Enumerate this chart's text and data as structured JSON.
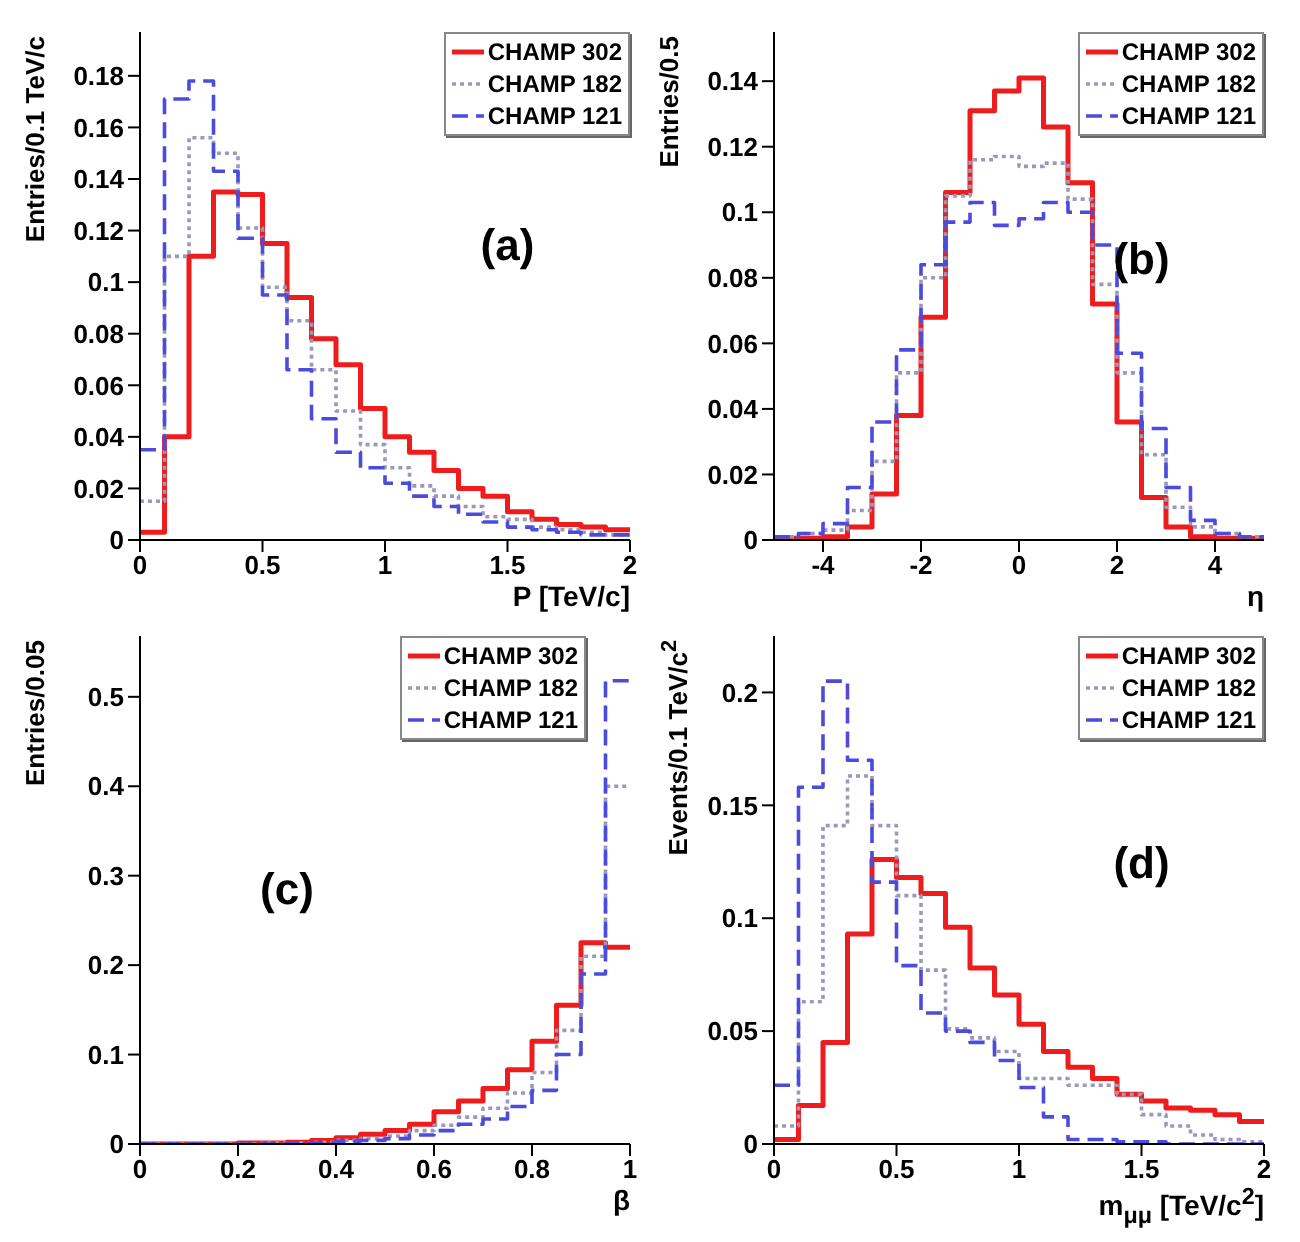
{
  "chart_data": [
    {
      "type": "histogram",
      "xlabel": "P [TeV/c]",
      "ylabel": "Entries/0.1 TeV/c",
      "annotations": [
        "(a)"
      ],
      "legend": "top right",
      "grid": false,
      "bins": [
        0,
        0.1,
        0.2,
        0.3,
        0.4,
        0.5,
        0.6,
        0.7,
        0.8,
        0.9,
        1,
        1.1,
        1.2,
        1.3,
        1.4,
        1.5,
        1.6,
        1.7,
        1.8,
        1.9,
        2
      ],
      "xlim": [
        0,
        2
      ],
      "xticks": [
        0,
        0.5,
        1,
        1.5,
        2
      ],
      "ylim": [
        0,
        0.197
      ],
      "yticks": [
        0,
        0.02,
        0.04,
        0.06,
        0.08,
        0.1,
        0.12,
        0.14,
        0.16,
        0.18
      ],
      "series": [
        {
          "name": "CHAMP 302",
          "color": "#ee1c1c",
          "line_style": "solid",
          "values": [
            0.003,
            0.04,
            0.11,
            0.135,
            0.134,
            0.115,
            0.094,
            0.078,
            0.068,
            0.051,
            0.04,
            0.034,
            0.027,
            0.02,
            0.017,
            0.011,
            0.008,
            0.006,
            0.005,
            0.004
          ]
        },
        {
          "name": "CHAMP 182",
          "color": "#9999bb",
          "line_style": "dotted",
          "values": [
            0.015,
            0.11,
            0.156,
            0.15,
            0.121,
            0.098,
            0.085,
            0.066,
            0.05,
            0.037,
            0.028,
            0.021,
            0.017,
            0.013,
            0.009,
            0.008,
            0.005,
            0.004,
            0.003,
            0.002
          ]
        },
        {
          "name": "CHAMP 121",
          "color": "#4b4bdd",
          "line_style": "dashed",
          "values": [
            0.035,
            0.171,
            0.178,
            0.143,
            0.117,
            0.095,
            0.066,
            0.047,
            0.034,
            0.028,
            0.022,
            0.017,
            0.013,
            0.01,
            0.007,
            0.005,
            0.004,
            0.003,
            0.002,
            0.002
          ]
        }
      ]
    },
    {
      "type": "histogram",
      "xlabel": "η",
      "ylabel": "Entries/0.5",
      "annotations": [
        "(b)"
      ],
      "legend": "top right",
      "grid": false,
      "bins": [
        -5,
        -4.5,
        -4,
        -3.5,
        -3,
        -2.5,
        -2,
        -1.5,
        -1,
        -0.5,
        0,
        0.5,
        1,
        1.5,
        2,
        2.5,
        3,
        3.5,
        4,
        4.5,
        5
      ],
      "xlim": [
        -5,
        5
      ],
      "xticks": [
        -4,
        -2,
        0,
        2,
        4
      ],
      "ylim": [
        0,
        0.155
      ],
      "yticks": [
        0,
        0.02,
        0.04,
        0.06,
        0.08,
        0.1,
        0.12,
        0.14
      ],
      "series": [
        {
          "name": "CHAMP 302",
          "color": "#ee1c1c",
          "line_style": "solid",
          "values": [
            0.0005,
            0.0005,
            0.001,
            0.004,
            0.014,
            0.038,
            0.068,
            0.106,
            0.131,
            0.137,
            0.141,
            0.126,
            0.109,
            0.072,
            0.036,
            0.013,
            0.004,
            0.001,
            0.0005,
            0.0005
          ]
        },
        {
          "name": "CHAMP 182",
          "color": "#9999bb",
          "line_style": "dotted",
          "values": [
            0.001,
            0.002,
            0.003,
            0.009,
            0.024,
            0.051,
            0.08,
            0.105,
            0.116,
            0.117,
            0.114,
            0.115,
            0.104,
            0.078,
            0.051,
            0.026,
            0.01,
            0.004,
            0.002,
            0.001
          ]
        },
        {
          "name": "CHAMP 121",
          "color": "#4b4bdd",
          "line_style": "dashed",
          "values": [
            0.001,
            0.002,
            0.005,
            0.016,
            0.036,
            0.058,
            0.084,
            0.097,
            0.103,
            0.096,
            0.098,
            0.103,
            0.1,
            0.09,
            0.057,
            0.034,
            0.016,
            0.006,
            0.002,
            0.001
          ]
        }
      ]
    },
    {
      "type": "histogram",
      "xlabel": "β",
      "ylabel": "Entries/0.05",
      "annotations": [
        "(c)"
      ],
      "legend": "top right",
      "grid": false,
      "bins": [
        0,
        0.05,
        0.1,
        0.15,
        0.2,
        0.25,
        0.3,
        0.35,
        0.4,
        0.45,
        0.5,
        0.55,
        0.6,
        0.65,
        0.7,
        0.75,
        0.8,
        0.85,
        0.9,
        0.95,
        1
      ],
      "xlim": [
        0,
        1
      ],
      "xticks": [
        0,
        0.2,
        0.4,
        0.6,
        0.8,
        1
      ],
      "ylim": [
        0,
        0.568
      ],
      "yticks": [
        0,
        0.1,
        0.2,
        0.3,
        0.4,
        0.5
      ],
      "series": [
        {
          "name": "CHAMP 302",
          "color": "#ee1c1c",
          "line_style": "solid",
          "values": [
            0,
            0,
            0,
            0,
            0.001,
            0.001,
            0.002,
            0.004,
            0.007,
            0.011,
            0.015,
            0.022,
            0.036,
            0.048,
            0.062,
            0.083,
            0.115,
            0.155,
            0.225,
            0.22
          ]
        },
        {
          "name": "CHAMP 182",
          "color": "#9999bb",
          "line_style": "dotted",
          "values": [
            0,
            0,
            0,
            0,
            0,
            0.001,
            0.001,
            0.002,
            0.004,
            0.006,
            0.009,
            0.015,
            0.021,
            0.03,
            0.04,
            0.057,
            0.08,
            0.127,
            0.21,
            0.4
          ]
        },
        {
          "name": "CHAMP 121",
          "color": "#4b4bdd",
          "line_style": "dashed",
          "values": [
            0,
            0,
            0,
            0,
            0,
            0,
            0.001,
            0.001,
            0.003,
            0.004,
            0.006,
            0.01,
            0.015,
            0.022,
            0.028,
            0.042,
            0.06,
            0.1,
            0.19,
            0.518
          ]
        }
      ]
    },
    {
      "type": "histogram",
      "xlabel": "m$_{μμ}$ [TeV/c$^{2}$]",
      "ylabel": "Events/0.1 TeV/c$^{2}$",
      "annotations": [
        "(d)"
      ],
      "legend": "top right",
      "grid": false,
      "bins": [
        0,
        0.1,
        0.2,
        0.3,
        0.4,
        0.5,
        0.6,
        0.7,
        0.8,
        0.9,
        1,
        1.1,
        1.2,
        1.3,
        1.4,
        1.5,
        1.6,
        1.7,
        1.8,
        1.9,
        2
      ],
      "xlim": [
        0,
        2
      ],
      "xticks": [
        0,
        0.5,
        1,
        1.5,
        2
      ],
      "ylim": [
        0,
        0.225
      ],
      "yticks": [
        0,
        0.05,
        0.1,
        0.15,
        0.2
      ],
      "series": [
        {
          "name": "CHAMP 302",
          "color": "#ee1c1c",
          "line_style": "solid",
          "values": [
            0.002,
            0.017,
            0.045,
            0.093,
            0.126,
            0.118,
            0.111,
            0.096,
            0.078,
            0.066,
            0.053,
            0.041,
            0.034,
            0.029,
            0.022,
            0.019,
            0.016,
            0.015,
            0.013,
            0.01
          ]
        },
        {
          "name": "CHAMP 182",
          "color": "#9999bb",
          "line_style": "dotted",
          "values": [
            0.008,
            0.063,
            0.141,
            0.163,
            0.141,
            0.11,
            0.077,
            0.051,
            0.047,
            0.041,
            0.029,
            0.029,
            0.026,
            0.026,
            0.022,
            0.013,
            0.008,
            0.004,
            0.002,
            0.001
          ]
        },
        {
          "name": "CHAMP 121",
          "color": "#4b4bdd",
          "line_style": "dashed",
          "values": [
            0.026,
            0.158,
            0.205,
            0.17,
            0.116,
            0.079,
            0.058,
            0.05,
            0.045,
            0.037,
            0.025,
            0.012,
            0.002,
            0.002,
            0.001,
            0.001,
            0,
            0,
            0,
            0
          ]
        }
      ]
    }
  ]
}
